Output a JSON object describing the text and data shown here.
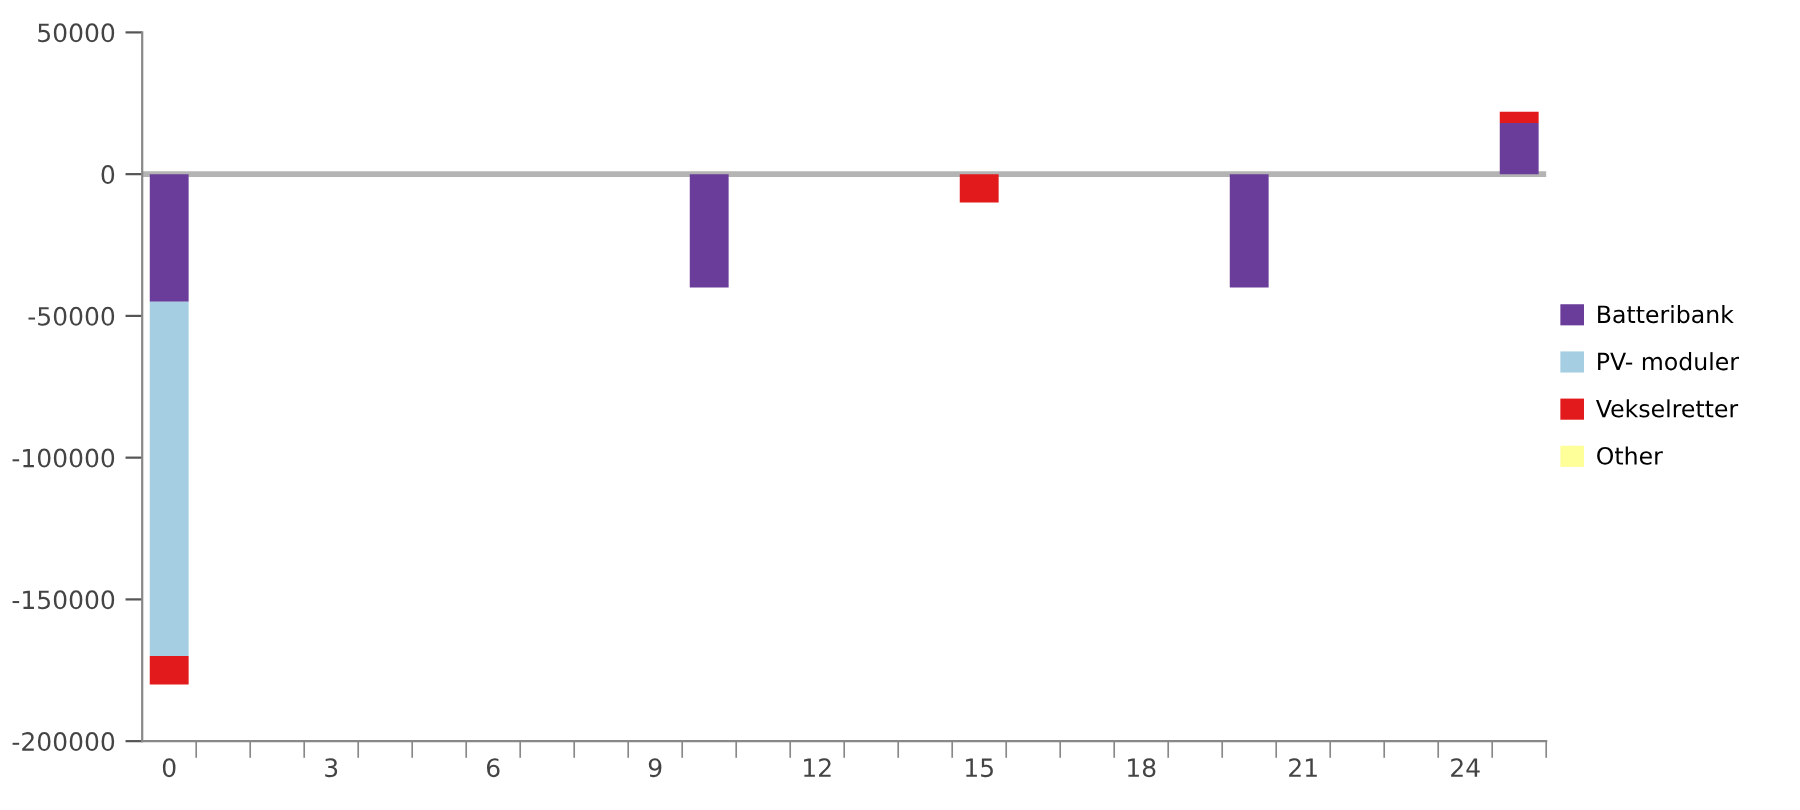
{
  "chart_data": {
    "type": "bar",
    "stacked": true,
    "categories": [
      "0",
      null,
      null,
      "3",
      null,
      null,
      "6",
      null,
      null,
      "9",
      null,
      null,
      "12",
      null,
      null,
      "15",
      null,
      null,
      "18",
      null,
      null,
      "21",
      null,
      null,
      "24",
      null
    ],
    "series": [
      {
        "name": "Batteribank",
        "color": "#6a3d9a",
        "values": [
          -45000,
          null,
          null,
          null,
          null,
          null,
          null,
          null,
          null,
          null,
          -40000,
          null,
          null,
          null,
          null,
          null,
          null,
          null,
          null,
          null,
          -40000,
          null,
          null,
          null,
          null,
          18000
        ]
      },
      {
        "name": "PV- moduler",
        "color": "#a6cee3",
        "values": [
          -125000,
          null,
          null,
          null,
          null,
          null,
          null,
          null,
          null,
          null,
          null,
          null,
          null,
          null,
          null,
          null,
          null,
          null,
          null,
          null,
          null,
          null,
          null,
          null,
          null,
          null
        ]
      },
      {
        "name": "Vekselretter",
        "color": "#e31a1c",
        "values": [
          -10000,
          null,
          null,
          null,
          null,
          null,
          null,
          null,
          null,
          null,
          null,
          null,
          null,
          null,
          null,
          -10000,
          null,
          null,
          null,
          null,
          null,
          null,
          null,
          null,
          null,
          4000
        ]
      },
      {
        "name": "Other",
        "color": "#ffff99",
        "values": [
          null,
          null,
          null,
          null,
          null,
          null,
          null,
          null,
          null,
          null,
          null,
          null,
          null,
          null,
          null,
          null,
          null,
          null,
          null,
          null,
          null,
          null,
          null,
          null,
          null,
          null
        ]
      }
    ],
    "ylim": [
      -200000,
      50000
    ],
    "yticks": [
      -200000,
      -150000,
      -100000,
      -50000,
      0,
      50000
    ],
    "ref_lines": [
      {
        "axis": "y",
        "value": 0,
        "color": "#b4b4b4"
      }
    ],
    "grid": false,
    "legend": "right"
  }
}
